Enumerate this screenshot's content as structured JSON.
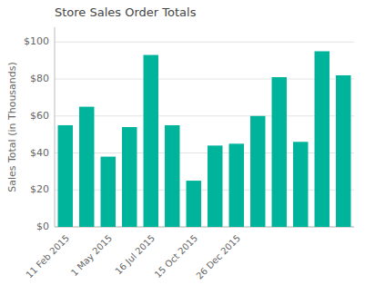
{
  "chart_data": {
    "type": "bar",
    "title": "Store Sales Order Totals",
    "ylabel": "Sales Total (in Thousands)",
    "categories": [
      "11 Feb 2015",
      null,
      "1 May 2015",
      null,
      "16 Jul 2015",
      null,
      "15 Oct 2015",
      null,
      "26 Dec 2015",
      null,
      null,
      null,
      null,
      null
    ],
    "values": [
      55,
      65,
      38,
      54,
      93,
      55,
      25,
      44,
      45,
      60,
      81,
      46,
      95,
      82
    ],
    "color": "#00B39B",
    "ylim": [
      0,
      108
    ],
    "yticks": [
      {
        "value": 0,
        "label": "$0"
      },
      {
        "value": 20,
        "label": "$20"
      },
      {
        "value": 40,
        "label": "$40"
      },
      {
        "value": 60,
        "label": "$60"
      },
      {
        "value": 80,
        "label": "$80"
      },
      {
        "value": 100,
        "label": "$100"
      }
    ],
    "grid": true
  }
}
